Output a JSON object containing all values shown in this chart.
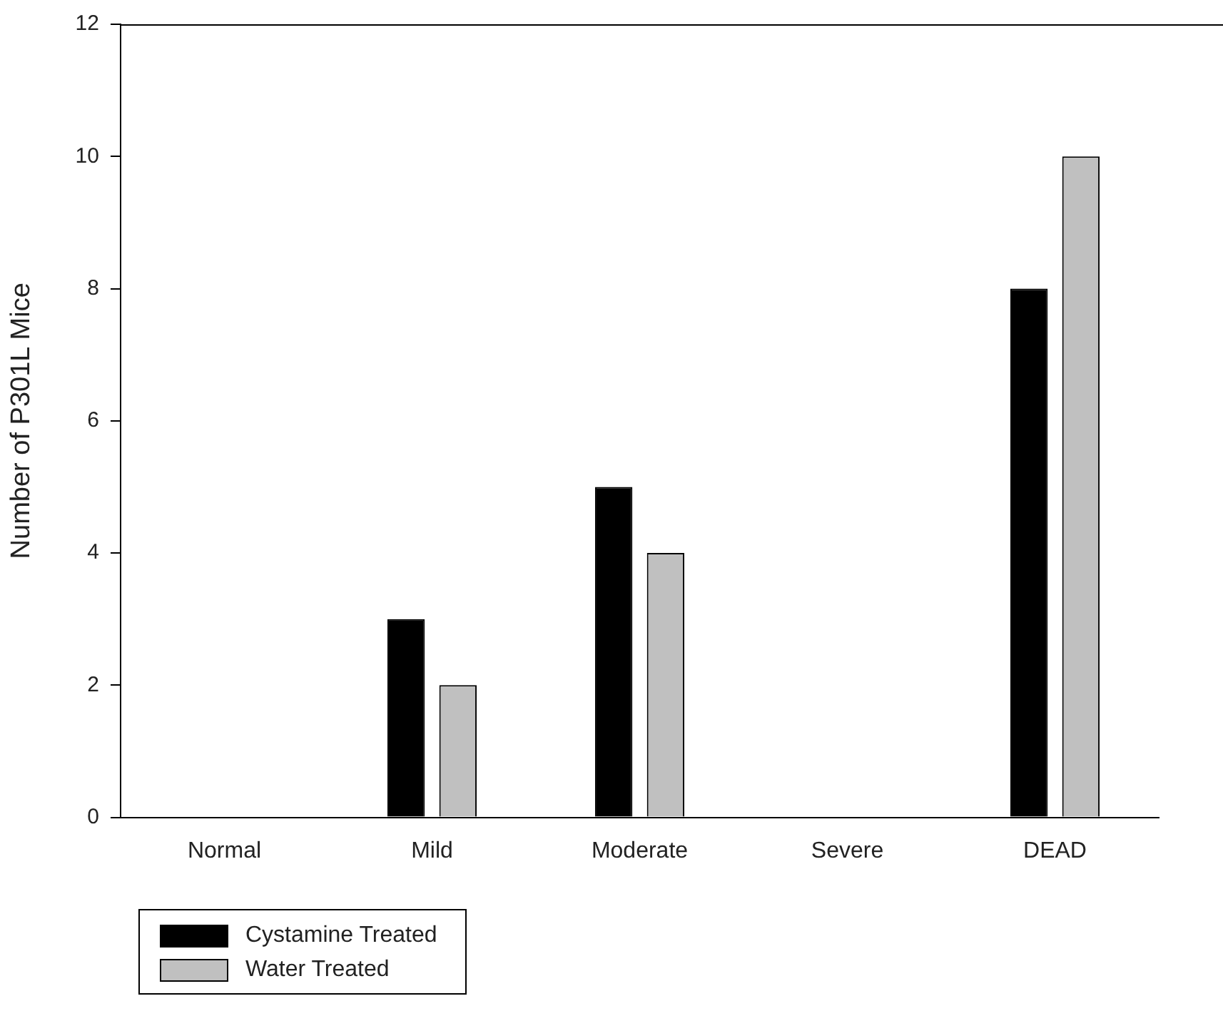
{
  "chart_data": {
    "type": "bar",
    "ylabel": "Number of P301L Mice",
    "categories": [
      "Normal",
      "Mild",
      "Moderate",
      "Severe",
      "DEAD"
    ],
    "series": [
      {
        "name": "Cystamine Treated",
        "color": "#000000",
        "values": [
          0,
          3,
          5,
          0,
          8
        ]
      },
      {
        "name": "Water Treated",
        "color": "#c0c0c0",
        "values": [
          0,
          2,
          4,
          0,
          10
        ]
      }
    ],
    "ylim": [
      0,
      12
    ],
    "yticks": [
      0,
      2,
      4,
      6,
      8,
      10,
      12
    ],
    "grid": false,
    "legend": "bottom left"
  }
}
